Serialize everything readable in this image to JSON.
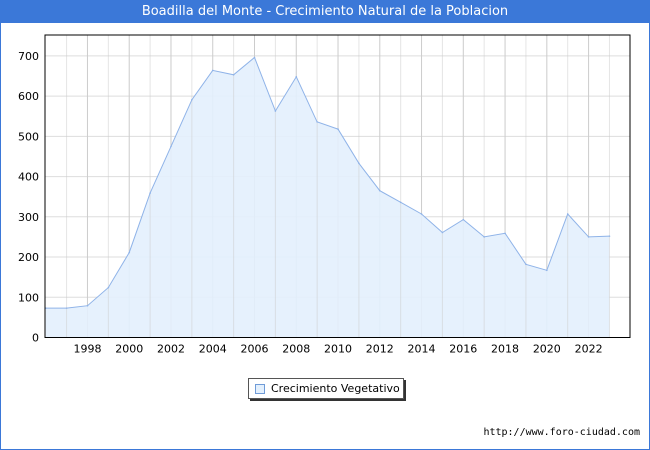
{
  "header": {
    "title": "Boadilla del Monte - Crecimiento Natural de la Poblacion"
  },
  "footer": {
    "url": "http://www.foro-ciudad.com"
  },
  "watermark": "FORO-CIUDAD.COM",
  "colors": {
    "title_bg": "#3b78d8",
    "line": "#8fb3e8",
    "fill": "#e3f0fd"
  },
  "chart_data": {
    "type": "area",
    "title": "Boadilla del Monte - Crecimiento Natural de la Poblacion",
    "x": [
      1996,
      1997,
      1998,
      1999,
      2000,
      2001,
      2002,
      2003,
      2004,
      2005,
      2006,
      2007,
      2008,
      2009,
      2010,
      2011,
      2012,
      2013,
      2014,
      2015,
      2016,
      2017,
      2018,
      2019,
      2020,
      2021,
      2022,
      2023
    ],
    "series": [
      {
        "name": "Crecimiento Vegetativo",
        "values": [
          73,
          73,
          79,
          124,
          211,
          359,
          475,
          591,
          664,
          653,
          696,
          563,
          648,
          536,
          518,
          433,
          365,
          336,
          307,
          261,
          293,
          250,
          259,
          182,
          167,
          307,
          250,
          252
        ]
      }
    ],
    "xticks": [
      "1998",
      "2000",
      "2002",
      "2004",
      "2006",
      "2008",
      "2010",
      "2012",
      "2014",
      "2016",
      "2018",
      "2020",
      "2022"
    ],
    "yticks": [
      "0",
      "100",
      "200",
      "300",
      "400",
      "500",
      "600",
      "700"
    ],
    "xlim": [
      1996,
      2024.5
    ],
    "ylim": [
      0,
      750
    ],
    "grid": true,
    "legend": "bottom-center"
  }
}
